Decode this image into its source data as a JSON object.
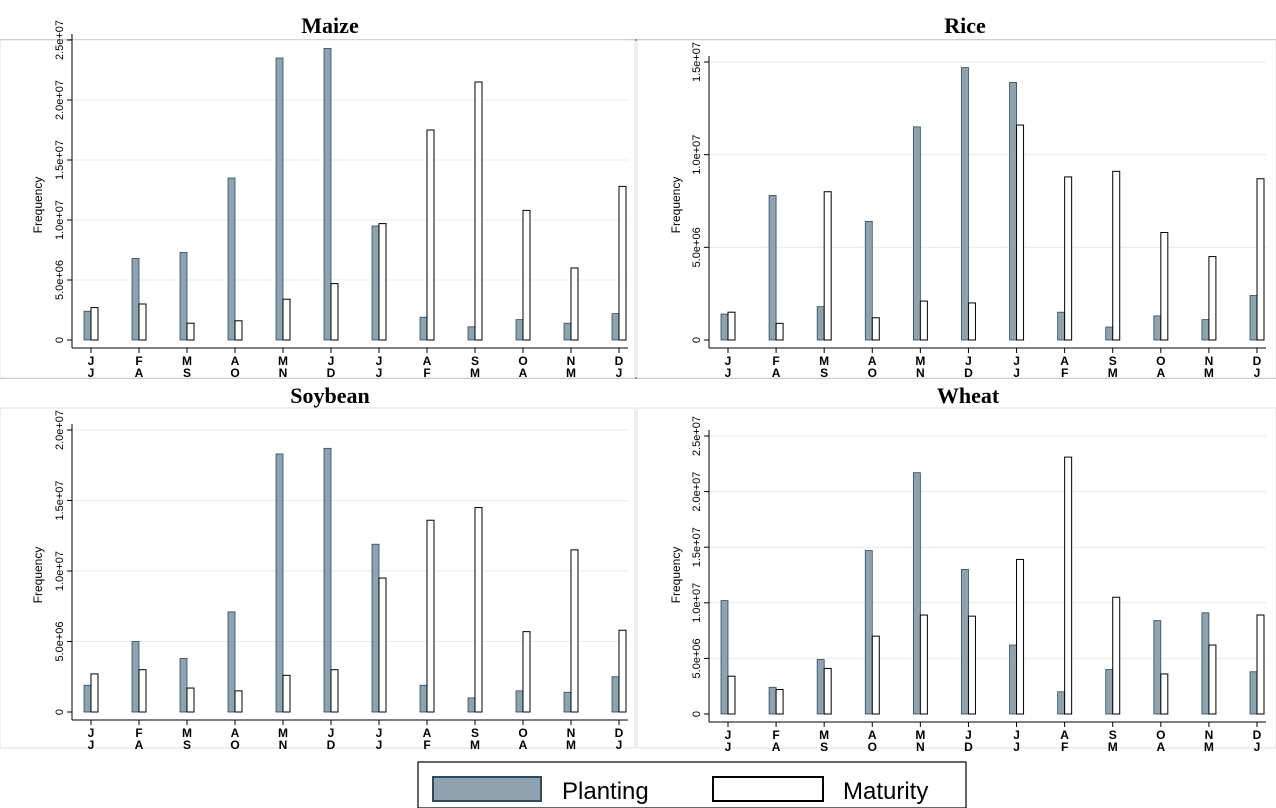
{
  "chart_data": {
    "legend": [
      {
        "name": "Planting",
        "color": "#8ea2b0",
        "stroke": "#2f4a5c"
      },
      {
        "name": "Maturity",
        "color": "#ffffff",
        "stroke": "#000000"
      }
    ],
    "panels": [
      {
        "type": "bar",
        "title": "Maize",
        "ylabel": "Frequency",
        "ylim": [
          0,
          25000000
        ],
        "yticks": [
          0,
          5000000,
          10000000,
          15000000,
          20000000,
          25000000
        ],
        "ytick_labels": [
          "0",
          "5.0e+06",
          "1.0e+07",
          "1.5e+07",
          "2.0e+07",
          "2.5e+07"
        ],
        "categories_top": [
          "J",
          "F",
          "M",
          "A",
          "M",
          "J",
          "J",
          "A",
          "S",
          "O",
          "N",
          "D"
        ],
        "categories_bottom": [
          "J",
          "A",
          "S",
          "O",
          "N",
          "D",
          "J",
          "F",
          "M",
          "A",
          "M",
          "J"
        ],
        "series": [
          {
            "name": "Planting",
            "values": [
              2400000,
              6800000,
              7300000,
              13500000,
              23500000,
              24300000,
              9500000,
              1900000,
              1100000,
              1700000,
              1400000,
              2200000
            ]
          },
          {
            "name": "Maturity",
            "values": [
              2700000,
              3000000,
              1400000,
              1600000,
              3400000,
              4700000,
              9700000,
              17500000,
              21500000,
              10800000,
              6000000,
              12800000
            ]
          }
        ]
      },
      {
        "type": "bar",
        "title": "Rice",
        "ylabel": "Frequency",
        "ylim": [
          0,
          15000000
        ],
        "yticks": [
          0,
          5000000,
          10000000,
          15000000
        ],
        "ytick_labels": [
          "0",
          "5.0e+06",
          "1.0e+07",
          "1.5e+07"
        ],
        "categories_top": [
          "J",
          "F",
          "M",
          "A",
          "M",
          "J",
          "J",
          "A",
          "S",
          "O",
          "N",
          "D"
        ],
        "categories_bottom": [
          "J",
          "A",
          "S",
          "O",
          "N",
          "D",
          "J",
          "F",
          "M",
          "A",
          "M",
          "J"
        ],
        "series": [
          {
            "name": "Planting",
            "values": [
              1400000,
              7800000,
              1800000,
              6400000,
              11500000,
              14700000,
              13900000,
              1500000,
              700000,
              1300000,
              1100000,
              2400000
            ]
          },
          {
            "name": "Maturity",
            "values": [
              1500000,
              900000,
              8000000,
              1200000,
              2100000,
              2000000,
              11600000,
              8800000,
              9100000,
              5800000,
              4500000,
              8700000
            ]
          }
        ]
      },
      {
        "type": "bar",
        "title": "Soybean",
        "ylabel": "Frequency",
        "ylim": [
          0,
          20000000
        ],
        "yticks": [
          0,
          5000000,
          10000000,
          15000000,
          20000000
        ],
        "ytick_labels": [
          "0",
          "5.0e+06",
          "1.0e+07",
          "1.5e+07",
          "2.0e+07"
        ],
        "categories_top": [
          "J",
          "F",
          "M",
          "A",
          "M",
          "J",
          "J",
          "A",
          "S",
          "O",
          "N",
          "D"
        ],
        "categories_bottom": [
          "J",
          "A",
          "S",
          "O",
          "N",
          "D",
          "J",
          "F",
          "M",
          "A",
          "M",
          "J"
        ],
        "series": [
          {
            "name": "Planting",
            "values": [
              1900000,
              5000000,
              3800000,
              7100000,
              18300000,
              18700000,
              11900000,
              1900000,
              1000000,
              1500000,
              1400000,
              2500000
            ]
          },
          {
            "name": "Maturity",
            "values": [
              2700000,
              3000000,
              1700000,
              1500000,
              2600000,
              3000000,
              9500000,
              13600000,
              14500000,
              5700000,
              11500000,
              5800000
            ]
          }
        ]
      },
      {
        "type": "bar",
        "title": "Wheat",
        "ylabel": "Frequency",
        "ylim": [
          0,
          25000000
        ],
        "yticks": [
          0,
          5000000,
          10000000,
          15000000,
          20000000,
          25000000
        ],
        "ytick_labels": [
          "0",
          "5.0e+06",
          "1.0e+07",
          "1.5e+07",
          "2.0e+07",
          "2.5e+07"
        ],
        "categories_top": [
          "J",
          "F",
          "M",
          "A",
          "M",
          "J",
          "J",
          "A",
          "S",
          "O",
          "N",
          "D"
        ],
        "categories_bottom": [
          "J",
          "A",
          "S",
          "O",
          "N",
          "D",
          "J",
          "F",
          "M",
          "A",
          "M",
          "J"
        ],
        "series": [
          {
            "name": "Planting",
            "values": [
              10200000,
              2400000,
              4900000,
              14700000,
              21700000,
              13000000,
              6200000,
              2000000,
              4000000,
              8400000,
              9100000,
              3800000
            ]
          },
          {
            "name": "Maturity",
            "values": [
              3400000,
              2200000,
              4100000,
              7000000,
              8900000,
              8800000,
              13900000,
              23100000,
              10500000,
              3600000,
              6200000,
              8900000
            ]
          }
        ]
      }
    ]
  }
}
